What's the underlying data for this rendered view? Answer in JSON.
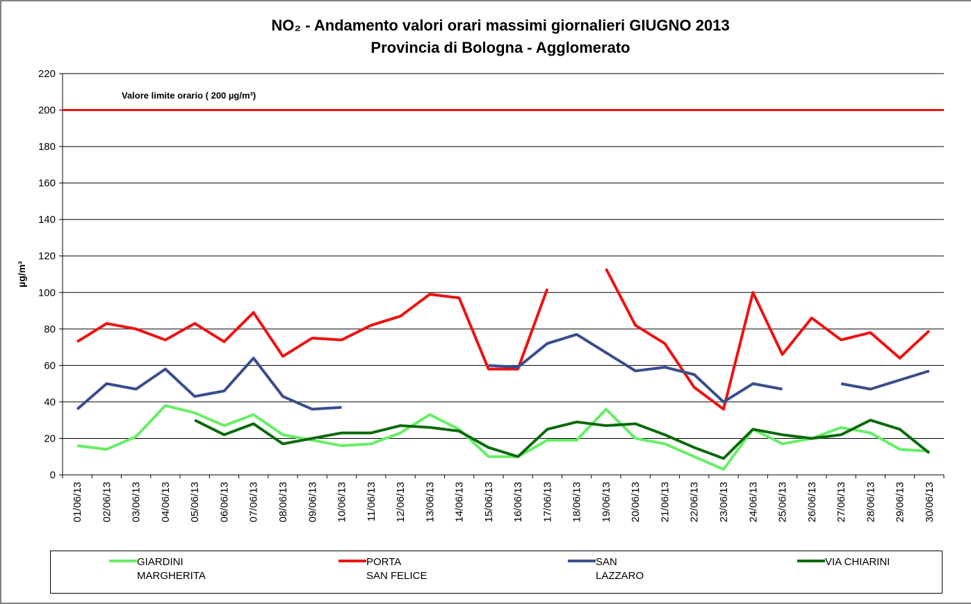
{
  "chart_data": {
    "type": "line",
    "title": "NO₂ - Andamento valori orari massimi giornalieri GIUGNO 2013",
    "subtitle": "Provincia di Bologna - Agglomerato",
    "y_label": "µg/m³",
    "annotation": "Valore limite orario ( 200 µg/m³)",
    "limit": {
      "value": 200,
      "color": "#ee1111"
    },
    "categories": [
      "01/06/13",
      "02/06/13",
      "03/06/13",
      "04/06/13",
      "05/06/13",
      "06/06/13",
      "07/06/13",
      "08/06/13",
      "09/06/13",
      "10/06/13",
      "11/06/13",
      "12/06/13",
      "13/06/13",
      "14/06/13",
      "15/06/13",
      "16/06/13",
      "17/06/13",
      "18/06/13",
      "19/06/13",
      "20/06/13",
      "21/06/13",
      "22/06/13",
      "23/06/13",
      "24/06/13",
      "25/06/13",
      "26/06/13",
      "27/06/13",
      "28/06/13",
      "29/06/13",
      "30/06/13"
    ],
    "series": [
      {
        "name": "GIARDINI\nMARGHERITA",
        "color": "#66ee66",
        "values": [
          16,
          14,
          21,
          38,
          34,
          27,
          33,
          22,
          19,
          16,
          17,
          23,
          33,
          25,
          10,
          10,
          19,
          19,
          36,
          20,
          17,
          10,
          3,
          25,
          17,
          20,
          26,
          23,
          14,
          13
        ]
      },
      {
        "name": "PORTA\nSAN FELICE",
        "color": "#ee1111",
        "values": [
          73,
          83,
          80,
          74,
          83,
          73,
          89,
          65,
          75,
          74,
          82,
          87,
          99,
          97,
          58,
          58,
          102,
          null,
          113,
          82,
          72,
          48,
          36,
          100,
          66,
          86,
          74,
          78,
          64,
          79
        ]
      },
      {
        "name": "SAN\nLAZZARO",
        "color": "#3a4d8c",
        "values": [
          36,
          50,
          47,
          58,
          43,
          46,
          64,
          43,
          36,
          37,
          null,
          null,
          null,
          null,
          60,
          59,
          72,
          77,
          67,
          57,
          59,
          55,
          40,
          50,
          47,
          null,
          50,
          47,
          52,
          57
        ]
      },
      {
        "name": "VIA CHIARINI",
        "color": "#0b6a0b",
        "values": [
          null,
          null,
          null,
          null,
          30,
          22,
          28,
          17,
          20,
          23,
          23,
          27,
          26,
          24,
          15,
          10,
          25,
          29,
          27,
          28,
          22,
          15,
          9,
          25,
          22,
          20,
          22,
          30,
          25,
          12
        ]
      }
    ],
    "ylim": [
      0,
      220
    ],
    "yticks": [
      0,
      20,
      40,
      60,
      80,
      100,
      120,
      140,
      160,
      180,
      200,
      220
    ],
    "grid": true
  }
}
